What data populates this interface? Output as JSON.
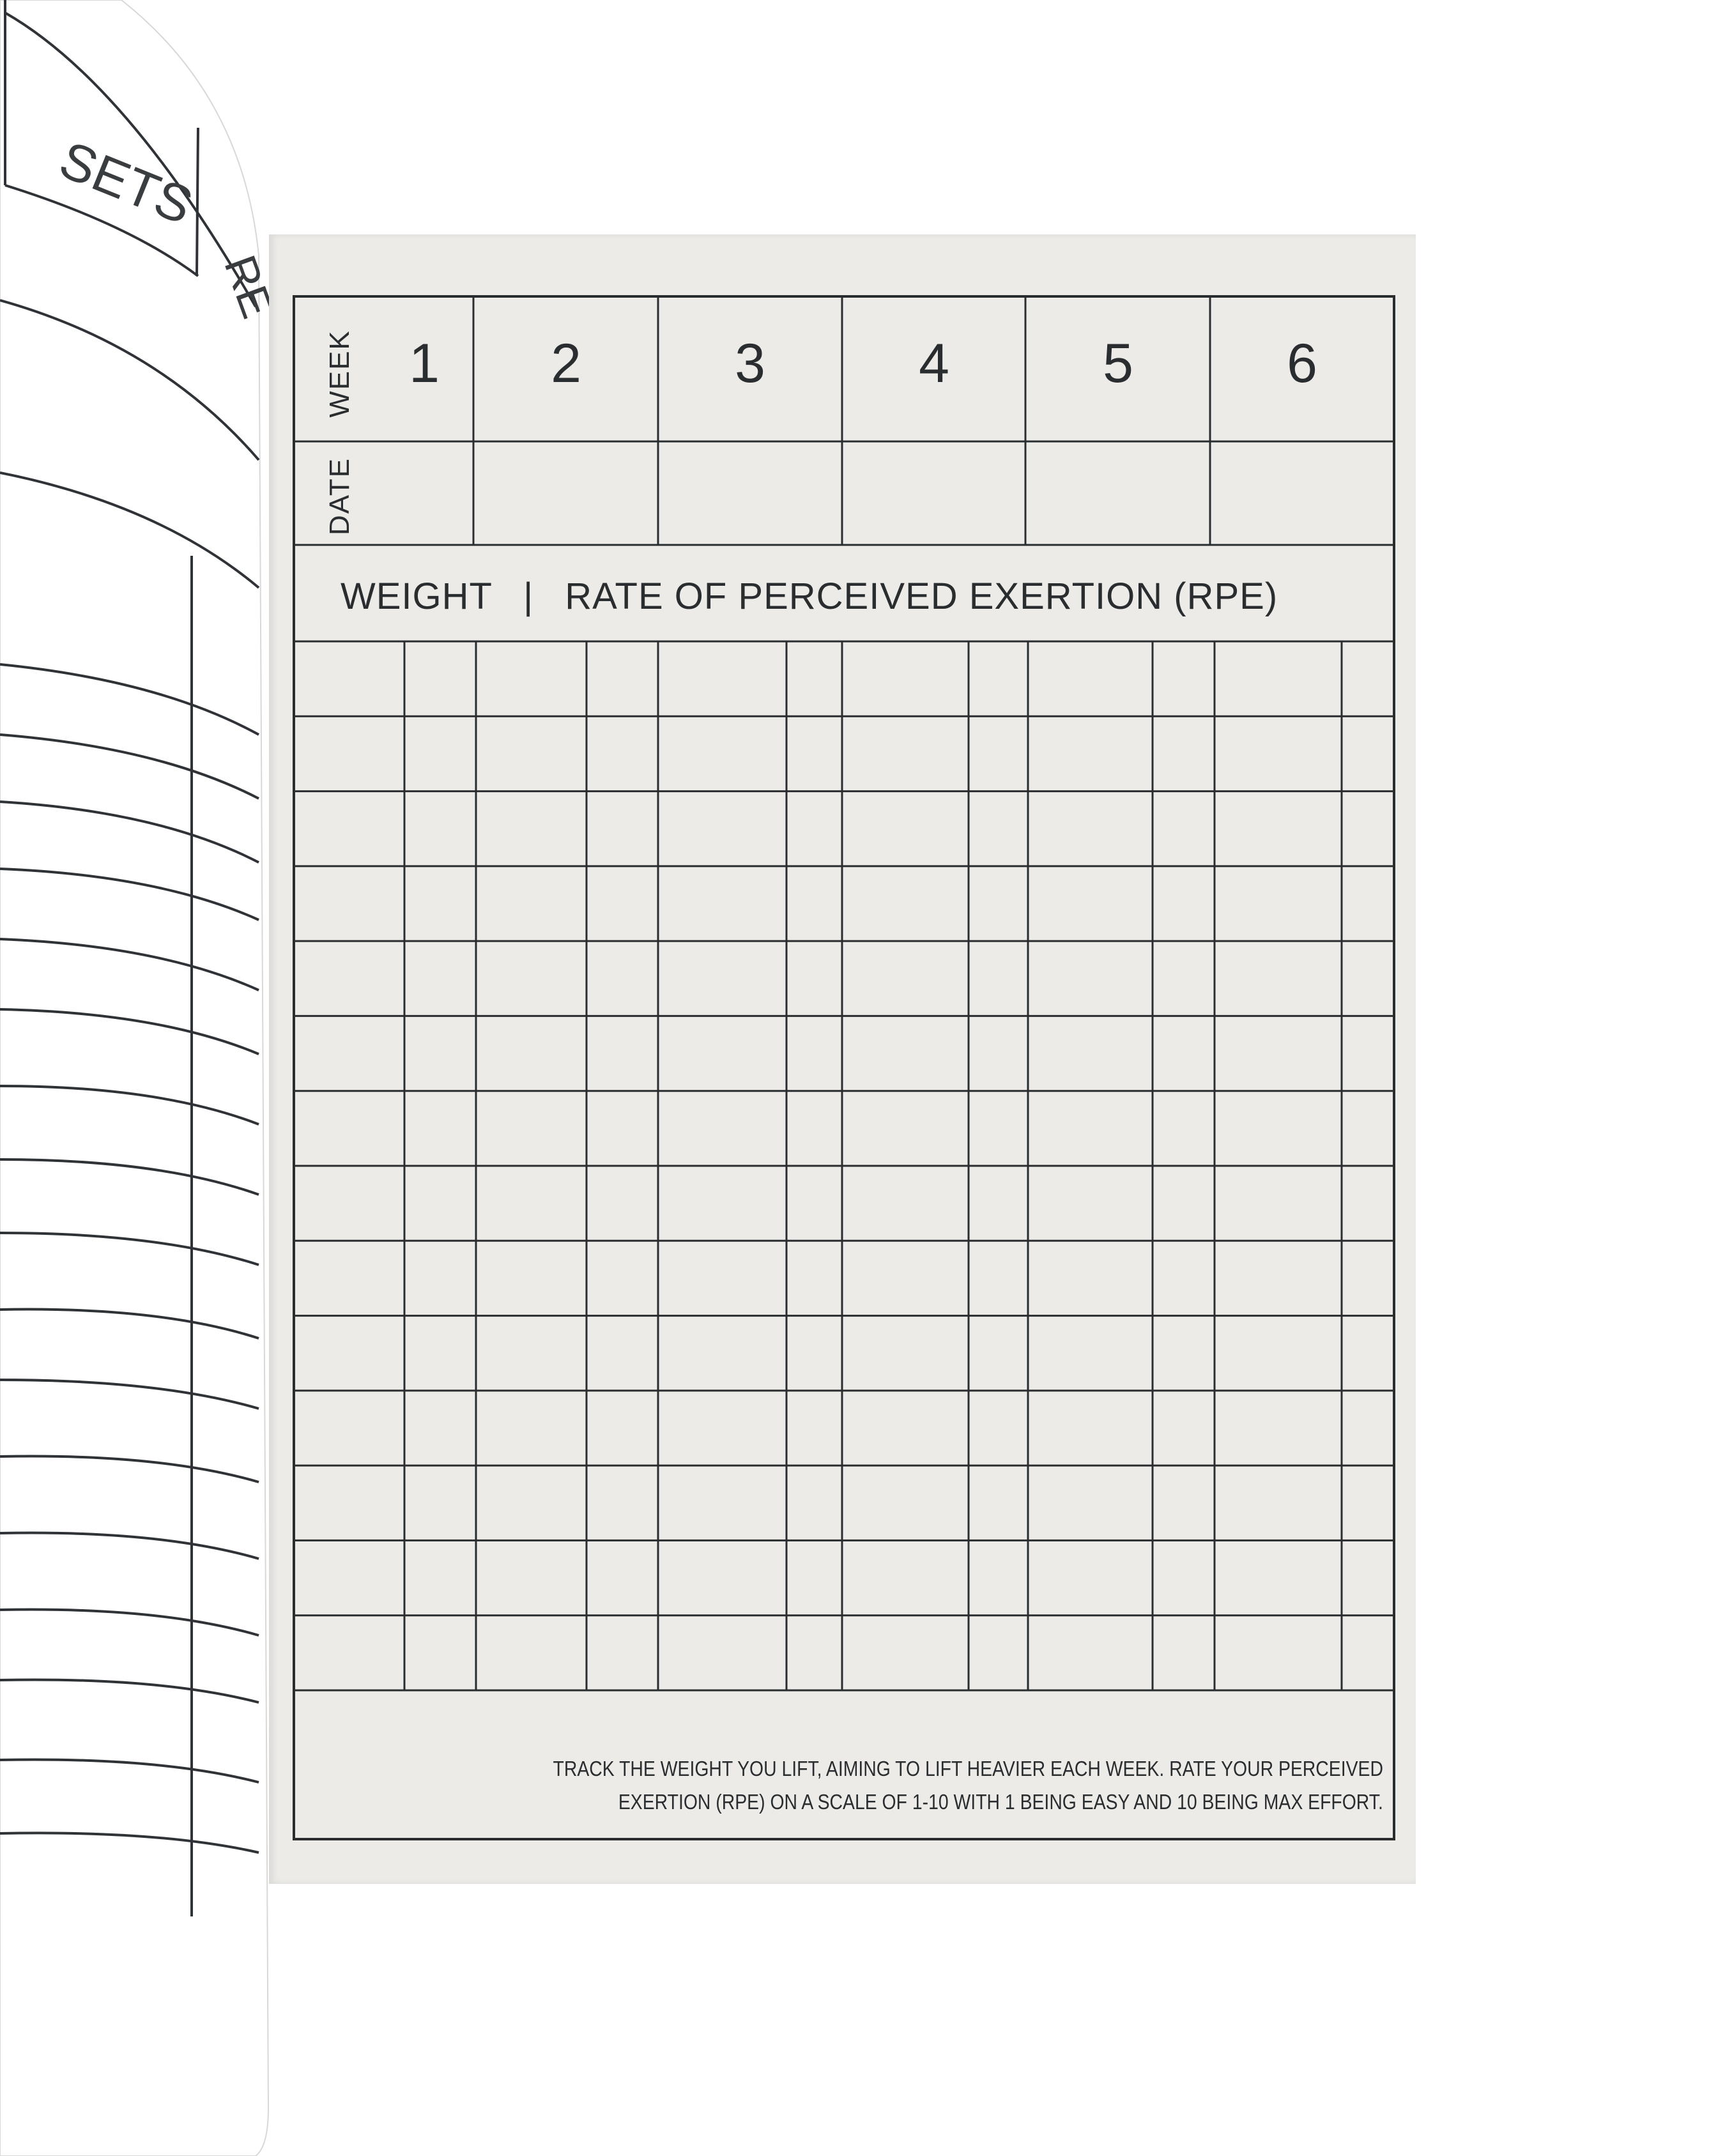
{
  "left_page": {
    "headers": [
      "SETS",
      "REPS"
    ]
  },
  "log_sheet": {
    "week_label": "WEEK",
    "date_label": "DATE",
    "weeks": [
      "1",
      "2",
      "3",
      "4",
      "5",
      "6"
    ],
    "weight_label": "WEIGHT",
    "separator": "|",
    "rpe_label": "RATE OF PERCEIVED EXERTION (RPE)",
    "instructions": [
      "TRACK THE WEIGHT YOU LIFT, AIMING TO LIFT HEAVIER EACH WEEK. RATE YOUR PERCEIVED",
      "EXERTION (RPE) ON A SCALE OF 1-10 WITH 1 BEING EASY AND 10 BEING MAX EFFORT."
    ]
  },
  "colors": {
    "paper": "#ecebe8",
    "ink": "#2a2d2f"
  }
}
